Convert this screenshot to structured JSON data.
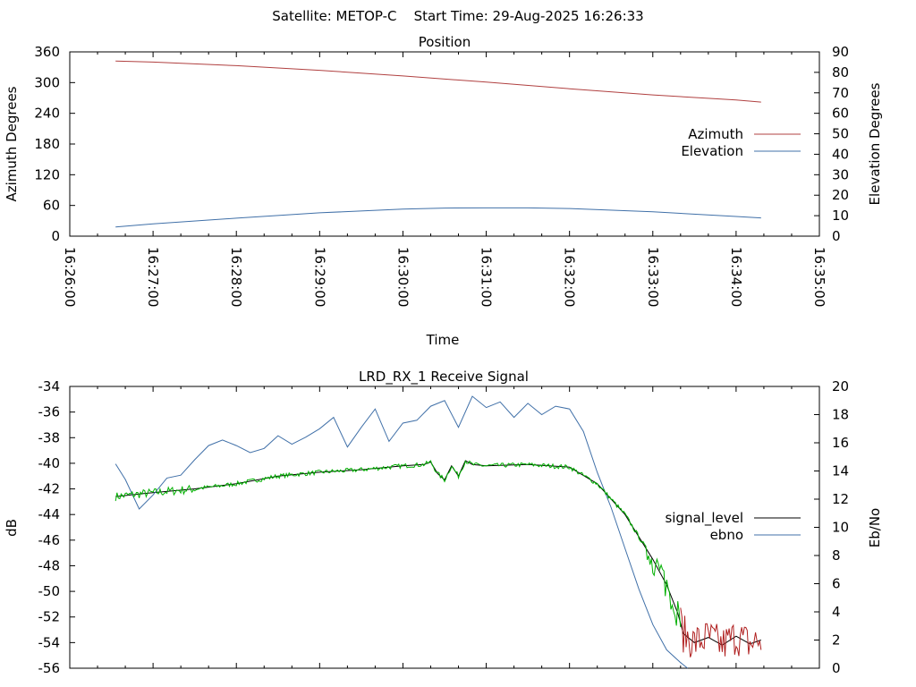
{
  "figure_title": "Satellite: METOP-C    Start Time: 29-Aug-2025 16:26:33",
  "colors": {
    "azimuth": "#b04040",
    "elevation": "#4070a8",
    "signal_level": "#000000",
    "ebno": "#4070a8",
    "signal_trace": "#00b000",
    "noise_floor_trace": "#b02020",
    "axes": "#000000",
    "background": "#ffffff"
  },
  "chart_data": [
    {
      "type": "line",
      "title": "Position",
      "xlabel": "Time",
      "ylabel": "Azimuth Degrees",
      "y2label": "Elevation Degrees",
      "x_ticks": [
        "16:26:00",
        "16:27:00",
        "16:28:00",
        "16:29:00",
        "16:30:00",
        "16:31:00",
        "16:32:00",
        "16:33:00",
        "16:34:00",
        "16:35:00"
      ],
      "y_ticks": [
        "0",
        "60",
        "120",
        "180",
        "240",
        "300",
        "360"
      ],
      "y2_ticks": [
        "0",
        "10",
        "20",
        "30",
        "40",
        "50",
        "60",
        "70",
        "80",
        "90"
      ],
      "xlim": [
        "16:26:00",
        "16:35:00"
      ],
      "ylim": [
        0,
        360
      ],
      "y2lim": [
        0,
        90
      ],
      "grid": false,
      "legend_position": "right",
      "series": [
        {
          "name": "Azimuth",
          "axis": "left",
          "x": [
            "16:26:33",
            "16:27:00",
            "16:28:00",
            "16:29:00",
            "16:30:00",
            "16:31:00",
            "16:32:00",
            "16:33:00",
            "16:34:00",
            "16:34:18"
          ],
          "values": [
            342,
            340,
            333,
            324,
            313,
            301,
            288,
            276,
            266,
            262
          ]
        },
        {
          "name": "Elevation",
          "axis": "right",
          "x": [
            "16:26:33",
            "16:27:00",
            "16:28:00",
            "16:29:00",
            "16:30:00",
            "16:30:30",
            "16:31:00",
            "16:31:30",
            "16:32:00",
            "16:33:00",
            "16:34:00",
            "16:34:18"
          ],
          "values": [
            4.5,
            6.0,
            8.8,
            11.4,
            13.2,
            13.7,
            13.8,
            13.8,
            13.5,
            11.9,
            9.6,
            8.9
          ]
        }
      ]
    },
    {
      "type": "line",
      "title": "LRD_RX_1 Receive Signal",
      "ylabel": "dB",
      "y2label": "Eb/No",
      "y_ticks": [
        "-56",
        "-54",
        "-52",
        "-50",
        "-48",
        "-46",
        "-44",
        "-42",
        "-40",
        "-38",
        "-36",
        "-34"
      ],
      "y2_ticks": [
        "0",
        "2",
        "4",
        "6",
        "8",
        "10",
        "12",
        "14",
        "16",
        "18",
        "20"
      ],
      "xlim": [
        "16:26:00",
        "16:35:00"
      ],
      "ylim": [
        -56,
        -34
      ],
      "y2lim": [
        0,
        20
      ],
      "grid": false,
      "legend_position": "right",
      "series": [
        {
          "name": "signal_level",
          "axis": "left",
          "x": [
            "16:26:33",
            "16:26:50",
            "16:27:00",
            "16:27:30",
            "16:28:00",
            "16:28:30",
            "16:29:00",
            "16:29:30",
            "16:30:00",
            "16:30:15",
            "16:30:20",
            "16:30:25",
            "16:30:30",
            "16:30:35",
            "16:30:40",
            "16:30:45",
            "16:30:50",
            "16:31:00",
            "16:31:30",
            "16:32:00",
            "16:32:20",
            "16:32:40",
            "16:33:00",
            "16:33:10",
            "16:33:18",
            "16:33:22",
            "16:33:30",
            "16:33:40",
            "16:33:50",
            "16:34:00",
            "16:34:10",
            "16:34:18"
          ],
          "values": [
            -42.6,
            -42.4,
            -42.3,
            -42.0,
            -41.6,
            -41.0,
            -40.7,
            -40.5,
            -40.2,
            -40.1,
            -39.9,
            -40.8,
            -41.3,
            -40.2,
            -41.0,
            -39.8,
            -40.1,
            -40.2,
            -40.1,
            -40.3,
            -41.6,
            -44.0,
            -47.5,
            -49.5,
            -51.7,
            -53.3,
            -54.0,
            -53.6,
            -54.2,
            -53.5,
            -54.1,
            -53.8
          ]
        },
        {
          "name": "ebno",
          "axis": "right",
          "x": [
            "16:26:33",
            "16:26:40",
            "16:26:50",
            "16:27:00",
            "16:27:10",
            "16:27:20",
            "16:27:30",
            "16:27:40",
            "16:27:50",
            "16:28:00",
            "16:28:10",
            "16:28:20",
            "16:28:30",
            "16:28:40",
            "16:28:50",
            "16:29:00",
            "16:29:10",
            "16:29:20",
            "16:29:30",
            "16:29:40",
            "16:29:50",
            "16:30:00",
            "16:30:10",
            "16:30:20",
            "16:30:30",
            "16:30:40",
            "16:30:50",
            "16:31:00",
            "16:31:10",
            "16:31:20",
            "16:31:30",
            "16:31:40",
            "16:31:50",
            "16:32:00",
            "16:32:10",
            "16:32:20",
            "16:32:30",
            "16:32:40",
            "16:32:50",
            "16:33:00",
            "16:33:10",
            "16:33:20",
            "16:33:25"
          ],
          "values": [
            14.5,
            13.4,
            11.3,
            12.3,
            13.5,
            13.7,
            14.8,
            15.8,
            16.2,
            15.8,
            15.3,
            15.6,
            16.5,
            15.9,
            16.4,
            17.0,
            17.8,
            15.7,
            17.1,
            18.4,
            16.1,
            17.4,
            17.6,
            18.6,
            19.0,
            17.1,
            19.3,
            18.5,
            18.9,
            17.8,
            18.8,
            18.0,
            18.6,
            18.4,
            16.8,
            13.9,
            11.4,
            8.5,
            5.6,
            3.1,
            1.3,
            0.4,
            0.0
          ]
        }
      ]
    }
  ]
}
